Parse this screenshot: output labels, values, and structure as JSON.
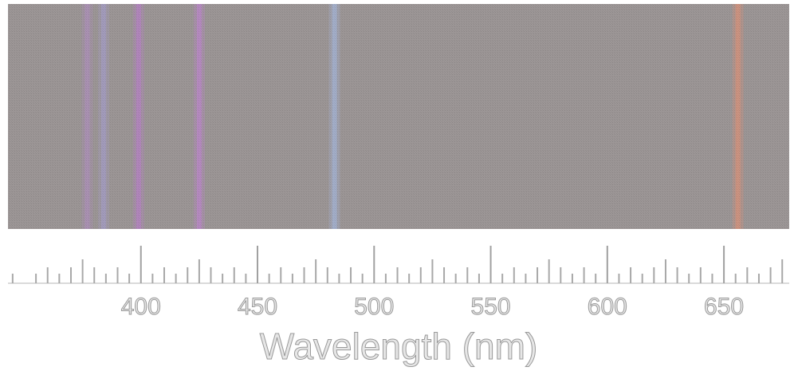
{
  "chart_data": {
    "type": "spectrum",
    "xlabel": "Wavelength (nm)",
    "xlim": [
      343,
      678
    ],
    "xticks": [
      400,
      450,
      500,
      550,
      600,
      650
    ],
    "background": "#9c9696",
    "lines": [
      {
        "x": 377,
        "color": "#b48cc8"
      },
      {
        "x": 384,
        "color": "#a8a0d8"
      },
      {
        "x": 399,
        "color": "#c07ad8"
      },
      {
        "x": 425,
        "color": "#c880e0"
      },
      {
        "x": 483,
        "color": "#a8c0f0"
      },
      {
        "x": 656,
        "color": "#f09070"
      }
    ]
  }
}
